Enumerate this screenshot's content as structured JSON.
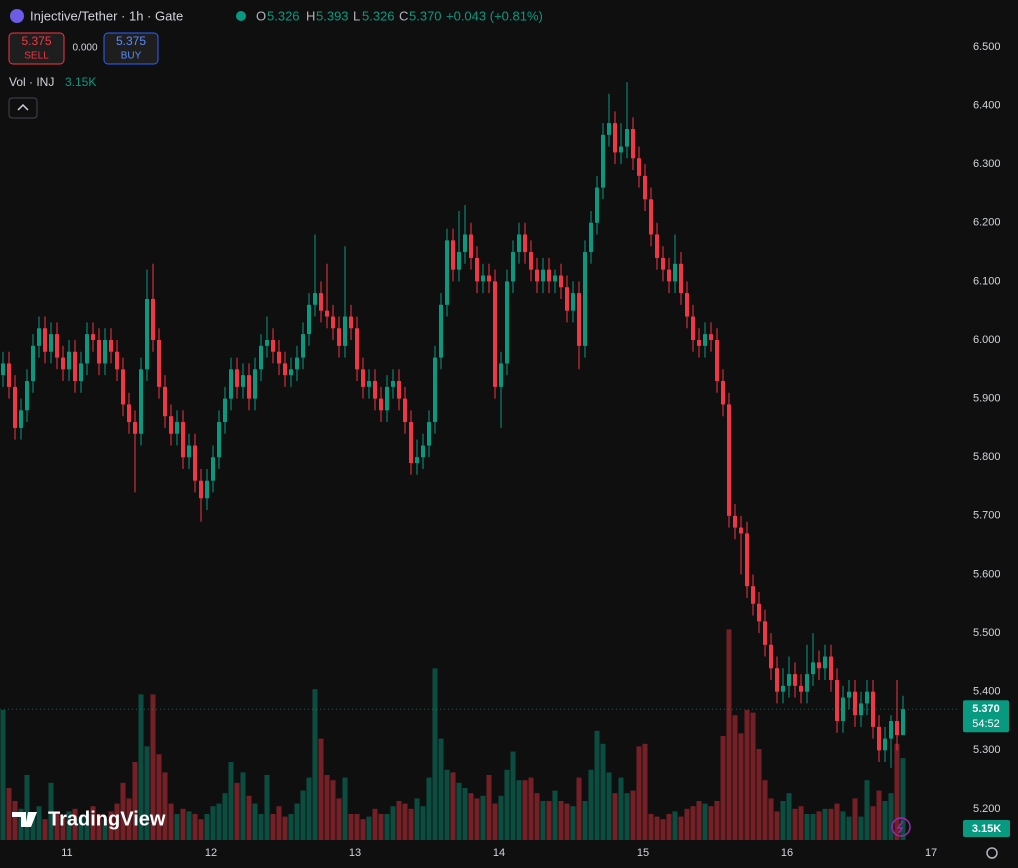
{
  "chart_data": {
    "type": "candlestick",
    "title": "Injective/Tether · 1h · Gate",
    "ohlc_letters": [
      "O",
      "H",
      "L",
      "C"
    ],
    "ohlc": {
      "open": 5.326,
      "high": 5.393,
      "low": 5.326,
      "close": {
        "value": 5.37,
        "label": "5.370"
      },
      "change": "+0.043 (+0.81%)"
    },
    "trade": {
      "sell_price": 5.375,
      "sell_label": "SELL",
      "spread": {
        "value": 0,
        "label": "0.000"
      },
      "buy_price": 5.375,
      "buy_label": "BUY"
    },
    "volume_title": "Vol · INJ",
    "volume_last": {
      "value": 3.15,
      "label": "3.15K"
    },
    "price_tag": {
      "value": 5.37,
      "label": "5.370"
    },
    "countdown": "54:52",
    "brand": "TradingView",
    "up_color": "#089981",
    "down_color": "#f23645",
    "xlim": [
      10.535,
      17.18
    ],
    "xticks": [
      11,
      12,
      13,
      14,
      15,
      16,
      17
    ],
    "ylim": [
      5.147,
      6.58
    ],
    "yticks": [
      {
        "value": 6.5,
        "label": "6.500"
      },
      {
        "value": 6.4,
        "label": "6.400"
      },
      {
        "value": 6.3,
        "label": "6.300"
      },
      {
        "value": 6.2,
        "label": "6.200"
      },
      {
        "value": 6.1,
        "label": "6.100"
      },
      {
        "value": 6.0,
        "label": "6.000"
      },
      {
        "value": 5.9,
        "label": "5.900"
      },
      {
        "value": 5.8,
        "label": "5.800"
      },
      {
        "value": 5.7,
        "label": "5.700"
      },
      {
        "value": 5.6,
        "label": "5.600"
      },
      {
        "value": 5.5,
        "label": "5.500"
      },
      {
        "value": 5.4,
        "label": "5.400"
      },
      {
        "value": 5.3,
        "label": "5.300"
      },
      {
        "value": 5.2,
        "label": "5.200"
      }
    ],
    "candles": [
      [
        5.94,
        5.98,
        5.92,
        5.96
      ],
      [
        5.96,
        5.98,
        5.9,
        5.92
      ],
      [
        5.92,
        5.94,
        5.83,
        5.85
      ],
      [
        5.85,
        5.9,
        5.83,
        5.88
      ],
      [
        5.88,
        5.95,
        5.86,
        5.93
      ],
      [
        5.93,
        6.01,
        5.91,
        5.99
      ],
      [
        5.99,
        6.04,
        5.97,
        6.02
      ],
      [
        6.02,
        6.04,
        5.96,
        5.98
      ],
      [
        5.98,
        6.03,
        5.96,
        6.01
      ],
      [
        6.01,
        6.03,
        5.95,
        5.97
      ],
      [
        5.97,
        5.99,
        5.93,
        5.95
      ],
      [
        5.95,
        6.0,
        5.93,
        5.98
      ],
      [
        5.98,
        6.0,
        5.91,
        5.93
      ],
      [
        5.93,
        5.98,
        5.91,
        5.96
      ],
      [
        5.96,
        6.03,
        5.94,
        6.01
      ],
      [
        6.01,
        6.03,
        5.98,
        6.0
      ],
      [
        6.0,
        6.02,
        5.94,
        5.96
      ],
      [
        5.96,
        6.02,
        5.94,
        6.0
      ],
      [
        6.0,
        6.02,
        5.96,
        5.98
      ],
      [
        5.98,
        6.0,
        5.93,
        5.95
      ],
      [
        5.95,
        5.97,
        5.87,
        5.89
      ],
      [
        5.89,
        5.91,
        5.84,
        5.86
      ],
      [
        5.86,
        5.88,
        5.74,
        5.84
      ],
      [
        5.84,
        5.97,
        5.82,
        5.95
      ],
      [
        5.95,
        6.12,
        5.93,
        6.07
      ],
      [
        6.07,
        6.13,
        5.98,
        6.0
      ],
      [
        6.0,
        6.02,
        5.9,
        5.92
      ],
      [
        5.92,
        5.94,
        5.85,
        5.87
      ],
      [
        5.87,
        5.89,
        5.82,
        5.84
      ],
      [
        5.84,
        5.88,
        5.82,
        5.86
      ],
      [
        5.86,
        5.88,
        5.78,
        5.8
      ],
      [
        5.8,
        5.84,
        5.78,
        5.82
      ],
      [
        5.82,
        5.84,
        5.74,
        5.76
      ],
      [
        5.76,
        5.78,
        5.69,
        5.73
      ],
      [
        5.73,
        5.78,
        5.71,
        5.76
      ],
      [
        5.76,
        5.82,
        5.74,
        5.8
      ],
      [
        5.8,
        5.88,
        5.78,
        5.86
      ],
      [
        5.86,
        5.92,
        5.84,
        5.9
      ],
      [
        5.9,
        5.97,
        5.88,
        5.95
      ],
      [
        5.95,
        5.97,
        5.9,
        5.92
      ],
      [
        5.92,
        5.96,
        5.9,
        5.94
      ],
      [
        5.94,
        5.96,
        5.88,
        5.9
      ],
      [
        5.9,
        5.97,
        5.88,
        5.95
      ],
      [
        5.95,
        6.01,
        5.93,
        5.99
      ],
      [
        5.99,
        6.04,
        5.97,
        6.0
      ],
      [
        6.0,
        6.02,
        5.96,
        5.98
      ],
      [
        5.98,
        6.0,
        5.94,
        5.96
      ],
      [
        5.96,
        5.98,
        5.92,
        5.94
      ],
      [
        5.94,
        5.97,
        5.92,
        5.95
      ],
      [
        5.95,
        5.99,
        5.93,
        5.97
      ],
      [
        5.97,
        6.03,
        5.95,
        6.01
      ],
      [
        6.01,
        6.08,
        5.99,
        6.06
      ],
      [
        6.06,
        6.18,
        6.04,
        6.08
      ],
      [
        6.08,
        6.1,
        6.03,
        6.05
      ],
      [
        6.05,
        6.13,
        6.02,
        6.04
      ],
      [
        6.04,
        6.06,
        6.0,
        6.02
      ],
      [
        6.02,
        6.04,
        5.97,
        5.99
      ],
      [
        5.99,
        6.16,
        5.97,
        6.04
      ],
      [
        6.04,
        6.06,
        6.0,
        6.02
      ],
      [
        6.02,
        6.04,
        5.93,
        5.95
      ],
      [
        5.95,
        5.97,
        5.9,
        5.92
      ],
      [
        5.92,
        5.95,
        5.9,
        5.93
      ],
      [
        5.93,
        5.95,
        5.88,
        5.9
      ],
      [
        5.9,
        5.92,
        5.86,
        5.88
      ],
      [
        5.88,
        5.94,
        5.86,
        5.92
      ],
      [
        5.92,
        5.95,
        5.9,
        5.93
      ],
      [
        5.93,
        5.95,
        5.88,
        5.9
      ],
      [
        5.9,
        5.92,
        5.84,
        5.86
      ],
      [
        5.86,
        5.88,
        5.77,
        5.79
      ],
      [
        5.79,
        5.83,
        5.77,
        5.8
      ],
      [
        5.8,
        5.84,
        5.78,
        5.82
      ],
      [
        5.82,
        5.88,
        5.8,
        5.86
      ],
      [
        5.86,
        5.99,
        5.84,
        5.97
      ],
      [
        5.97,
        6.08,
        5.95,
        6.06
      ],
      [
        6.06,
        6.19,
        6.04,
        6.17
      ],
      [
        6.17,
        6.19,
        6.1,
        6.12
      ],
      [
        6.12,
        6.22,
        6.1,
        6.15
      ],
      [
        6.15,
        6.23,
        6.13,
        6.18
      ],
      [
        6.18,
        6.2,
        6.12,
        6.14
      ],
      [
        6.14,
        6.16,
        6.08,
        6.1
      ],
      [
        6.1,
        6.13,
        6.08,
        6.11
      ],
      [
        6.11,
        6.13,
        6.08,
        6.1
      ],
      [
        6.1,
        6.12,
        5.9,
        5.92
      ],
      [
        5.92,
        5.98,
        5.85,
        5.96
      ],
      [
        5.96,
        6.12,
        5.94,
        6.1
      ],
      [
        6.1,
        6.17,
        6.08,
        6.15
      ],
      [
        6.15,
        6.2,
        6.13,
        6.18
      ],
      [
        6.18,
        6.2,
        6.13,
        6.15
      ],
      [
        6.15,
        6.17,
        6.1,
        6.12
      ],
      [
        6.12,
        6.14,
        6.08,
        6.1
      ],
      [
        6.1,
        6.14,
        6.08,
        6.12
      ],
      [
        6.12,
        6.14,
        6.08,
        6.1
      ],
      [
        6.1,
        6.12,
        6.08,
        6.11
      ],
      [
        6.11,
        6.13,
        6.07,
        6.09
      ],
      [
        6.09,
        6.11,
        6.03,
        6.05
      ],
      [
        6.05,
        6.1,
        6.03,
        6.08
      ],
      [
        6.08,
        6.1,
        5.95,
        5.99
      ],
      [
        5.99,
        6.17,
        5.97,
        6.15
      ],
      [
        6.15,
        6.22,
        6.13,
        6.2
      ],
      [
        6.2,
        6.28,
        6.18,
        6.26
      ],
      [
        6.26,
        6.37,
        6.24,
        6.35
      ],
      [
        6.35,
        6.42,
        6.33,
        6.37
      ],
      [
        6.37,
        6.39,
        6.3,
        6.32
      ],
      [
        6.32,
        6.37,
        6.3,
        6.33
      ],
      [
        6.33,
        6.44,
        6.31,
        6.36
      ],
      [
        6.36,
        6.38,
        6.29,
        6.31
      ],
      [
        6.31,
        6.33,
        6.26,
        6.28
      ],
      [
        6.28,
        6.3,
        6.22,
        6.24
      ],
      [
        6.24,
        6.26,
        6.16,
        6.18
      ],
      [
        6.18,
        6.2,
        6.12,
        6.14
      ],
      [
        6.14,
        6.16,
        6.1,
        6.12
      ],
      [
        6.12,
        6.14,
        6.08,
        6.1
      ],
      [
        6.1,
        6.18,
        6.08,
        6.13
      ],
      [
        6.13,
        6.15,
        6.06,
        6.08
      ],
      [
        6.08,
        6.1,
        6.02,
        6.04
      ],
      [
        6.04,
        6.06,
        5.98,
        6.0
      ],
      [
        6.0,
        6.02,
        5.97,
        5.99
      ],
      [
        5.99,
        6.03,
        5.97,
        6.01
      ],
      [
        6.01,
        6.03,
        5.98,
        6.0
      ],
      [
        6.0,
        6.02,
        5.91,
        5.93
      ],
      [
        5.93,
        5.95,
        5.87,
        5.89
      ],
      [
        5.89,
        5.91,
        5.68,
        5.7
      ],
      [
        5.7,
        5.72,
        5.66,
        5.68
      ],
      [
        5.68,
        5.7,
        5.6,
        5.67
      ],
      [
        5.67,
        5.69,
        5.56,
        5.58
      ],
      [
        5.58,
        5.6,
        5.53,
        5.55
      ],
      [
        5.55,
        5.57,
        5.5,
        5.52
      ],
      [
        5.52,
        5.54,
        5.46,
        5.48
      ],
      [
        5.48,
        5.5,
        5.42,
        5.44
      ],
      [
        5.44,
        5.46,
        5.38,
        5.4
      ],
      [
        5.4,
        5.44,
        5.38,
        5.41
      ],
      [
        5.41,
        5.46,
        5.39,
        5.43
      ],
      [
        5.43,
        5.45,
        5.39,
        5.41
      ],
      [
        5.41,
        5.43,
        5.38,
        5.4
      ],
      [
        5.4,
        5.48,
        5.38,
        5.43
      ],
      [
        5.43,
        5.5,
        5.41,
        5.45
      ],
      [
        5.45,
        5.47,
        5.42,
        5.44
      ],
      [
        5.44,
        5.48,
        5.42,
        5.46
      ],
      [
        5.46,
        5.48,
        5.4,
        5.42
      ],
      [
        5.42,
        5.44,
        5.33,
        5.35
      ],
      [
        5.35,
        5.41,
        5.33,
        5.39
      ],
      [
        5.39,
        5.42,
        5.37,
        5.4
      ],
      [
        5.4,
        5.42,
        5.34,
        5.36
      ],
      [
        5.36,
        5.4,
        5.34,
        5.38
      ],
      [
        5.38,
        5.42,
        5.36,
        5.4
      ],
      [
        5.4,
        5.42,
        5.32,
        5.34
      ],
      [
        5.34,
        5.36,
        5.28,
        5.3
      ],
      [
        5.3,
        5.34,
        5.28,
        5.32
      ],
      [
        5.32,
        5.36,
        5.27,
        5.35
      ],
      [
        5.35,
        5.42,
        5.3,
        5.326
      ],
      [
        5.326,
        5.393,
        5.326,
        5.37
      ]
    ],
    "volumes": [
      5.0,
      2.0,
      1.5,
      1.2,
      2.5,
      1.0,
      1.3,
      0.8,
      2.2,
      1.0,
      0.9,
      1.1,
      1.2,
      0.9,
      1.0,
      1.3,
      1.0,
      0.8,
      1.1,
      1.4,
      2.2,
      1.6,
      3.0,
      5.6,
      3.6,
      5.6,
      3.3,
      2.6,
      1.4,
      1.0,
      1.2,
      1.1,
      1.0,
      0.8,
      1.0,
      1.3,
      1.4,
      1.8,
      3.0,
      2.2,
      2.6,
      1.7,
      1.4,
      1.0,
      2.5,
      1.0,
      1.3,
      0.9,
      1.0,
      1.4,
      1.9,
      2.4,
      5.8,
      3.9,
      2.5,
      2.3,
      1.6,
      2.4,
      1.0,
      1.0,
      0.8,
      0.9,
      1.2,
      1.0,
      1.0,
      1.3,
      1.5,
      1.4,
      1.2,
      1.6,
      1.3,
      2.4,
      6.6,
      3.9,
      2.7,
      2.6,
      2.2,
      2.0,
      1.8,
      1.6,
      1.7,
      2.5,
      1.4,
      1.7,
      2.7,
      3.4,
      2.3,
      2.3,
      2.4,
      1.8,
      1.5,
      1.5,
      1.9,
      1.5,
      1.4,
      1.3,
      2.4,
      1.5,
      2.7,
      4.2,
      3.7,
      2.6,
      1.8,
      2.4,
      1.8,
      1.9,
      3.6,
      3.7,
      1.0,
      0.9,
      0.8,
      1.0,
      1.1,
      0.9,
      1.2,
      1.3,
      1.5,
      1.4,
      1.3,
      1.5,
      4.0,
      8.1,
      4.8,
      4.1,
      5.0,
      4.9,
      3.5,
      2.3,
      1.6,
      1.1,
      1.5,
      1.8,
      1.2,
      1.3,
      1.0,
      1.0,
      1.1,
      1.2,
      1.2,
      1.4,
      1.1,
      0.9,
      1.6,
      0.9,
      2.3,
      1.3,
      1.9,
      1.5,
      1.8,
      3.7,
      3.15
    ]
  }
}
